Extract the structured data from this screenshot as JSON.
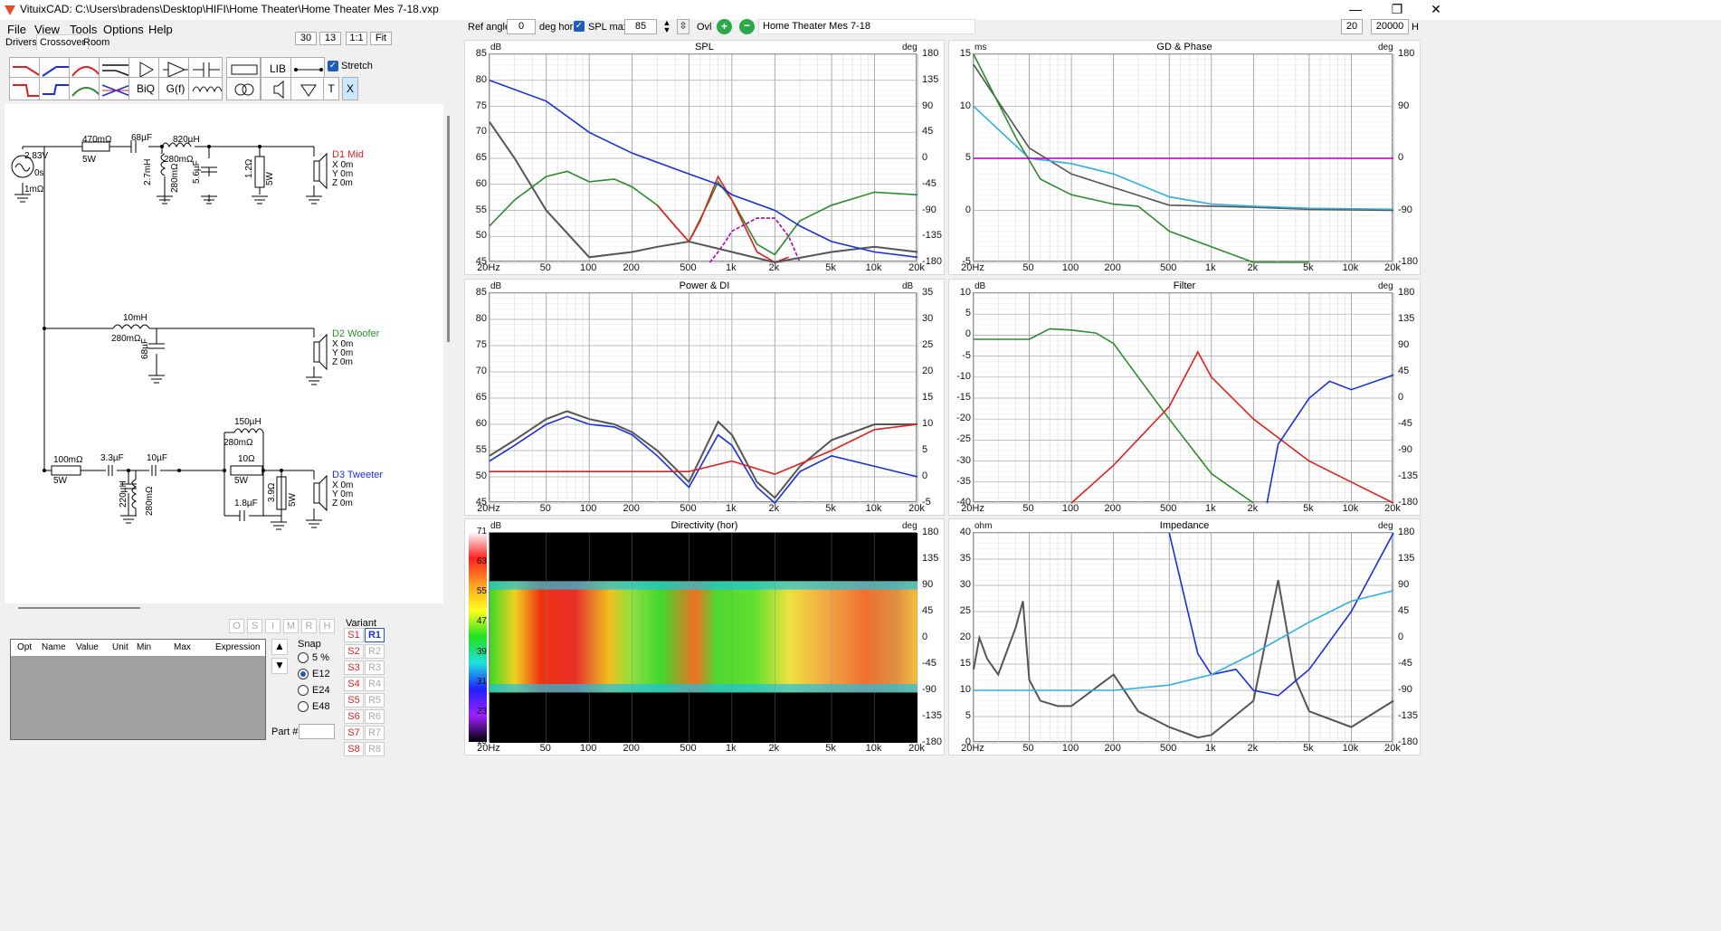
{
  "window": {
    "title": "VituixCAD: C:\\Users\\bradens\\Desktop\\HIFI\\Home Theater\\Home Theater Mes 7-18.vxp",
    "min": "—",
    "max": "❐",
    "close": "✕"
  },
  "menu": [
    "File",
    "View",
    "Tools",
    "Options",
    "Help"
  ],
  "tabs": [
    "Drivers",
    "Crossover",
    "Room"
  ],
  "zoom": {
    "v1": "30",
    "v2": "13",
    "v3": "1:1",
    "v4": "Fit"
  },
  "tools": {
    "row1": [
      "LIB"
    ],
    "row2": [
      "BiQ",
      "G(f)",
      "T",
      "X"
    ],
    "stretch": "Stretch"
  },
  "top": {
    "ref_angle_label": "Ref angle",
    "ref_angle": "0",
    "deg_hor": "deg hor",
    "spl_max_label": "SPL max",
    "spl_max": "85",
    "ovl": "Ovl",
    "project": "Home Theater Mes 7-18",
    "f_low": "20",
    "f_high": "20000",
    "hz": "H"
  },
  "schematic": {
    "source": {
      "v": "2.83V",
      "s": "0s",
      "r": "1mΩ"
    },
    "mid": {
      "r1": "470mΩ",
      "r1w": "5W",
      "c1": "68µF",
      "l1": "820µH",
      "l1r": "280mΩ",
      "l2": "2.7mH",
      "l2r": "280mΩ",
      "c2": "5.6µF",
      "r2": "1.2Ω",
      "r2w": "5W",
      "driver": "D1 Mid",
      "x": "X 0m",
      "y": "Y 0m",
      "z": "Z 0m"
    },
    "woofer": {
      "l1": "10mH",
      "l1r": "280mΩ",
      "c1": "68µF",
      "driver": "D2 Woofer",
      "x": "X 0m",
      "y": "Y 0m",
      "z": "Z 0m"
    },
    "tweeter": {
      "r1": "100mΩ",
      "r1w": "5W",
      "c1": "3.3µF",
      "c2": "10µF",
      "l1": "220µH",
      "l1r": "280mΩ",
      "l2": "150µH",
      "l2r": "280mΩ",
      "r2": "10Ω",
      "r2w": "5W",
      "c3": "1.8µF",
      "r3": "3.9Ω",
      "r3w": "5W",
      "driver": "D3 Tweeter",
      "x": "X 0m",
      "y": "Y 0m",
      "z": "Z 0m"
    }
  },
  "optim": {
    "flags": [
      "O",
      "S",
      "I",
      "M",
      "R",
      "H"
    ],
    "cols": [
      "Opt",
      "Name",
      "Value",
      "Unit",
      "Min",
      "Max",
      "Expression"
    ],
    "snap_label": "Snap",
    "snap": [
      "5 %",
      "E12",
      "E24",
      "E48"
    ],
    "variant_label": "Variant",
    "s": [
      "S1",
      "S2",
      "S3",
      "S4",
      "S5",
      "S6",
      "S7",
      "S8"
    ],
    "r": [
      "R1",
      "R2",
      "R3",
      "R4",
      "R5",
      "R6",
      "R7",
      "R8"
    ],
    "part": "Part #"
  },
  "colors": {
    "red": "#e02020",
    "blue": "#1a2ee0",
    "green": "#2e8b2e",
    "grey": "#555555",
    "purple": "#b000b0",
    "cyan": "#30b0e0"
  },
  "chart_data": [
    {
      "type": "line",
      "title": "SPL",
      "ylabel": "dB",
      "ylabel_right": "deg",
      "ylim": [
        45,
        85
      ],
      "ylim_right": [
        -180,
        180
      ],
      "xlim": [
        20,
        20000
      ],
      "xscale": "log",
      "x_ticks": [
        "20Hz",
        "50",
        "100",
        "200",
        "500",
        "1k",
        "2k",
        "5k",
        "10k",
        "20k"
      ],
      "y_ticks": [
        "85",
        "80",
        "75",
        "70",
        "65",
        "60",
        "55",
        "50",
        "45"
      ],
      "r_ticks": [
        "180",
        "135",
        "90",
        "45",
        "0",
        "-45",
        "-90",
        "-135",
        "-180"
      ],
      "series": [
        {
          "color": "green",
          "x": [
            20,
            30,
            50,
            70,
            100,
            150,
            200,
            300,
            400,
            500,
            700,
            800,
            1000,
            1500,
            2000,
            3000,
            5000,
            10000,
            20000
          ],
          "y": [
            52,
            57,
            61.5,
            62.5,
            60.5,
            61,
            59.5,
            56,
            52,
            49,
            57,
            60.5,
            57,
            48.5,
            46.5,
            53,
            56,
            58.5,
            58
          ]
        },
        {
          "color": "red",
          "x": [
            300,
            400,
            500,
            600,
            800,
            1000,
            1500,
            2000,
            2500
          ],
          "y": [
            56,
            52,
            49,
            53,
            61.5,
            57,
            47,
            45,
            46
          ]
        },
        {
          "color": "purple",
          "x": [
            700,
            800,
            900,
            1000,
            1500,
            2000,
            2500,
            3000
          ],
          "y": [
            45,
            47,
            49,
            51,
            53.5,
            53.5,
            50,
            45
          ]
        },
        {
          "color": "grey",
          "x": [
            20,
            30,
            50,
            100,
            200,
            300,
            500,
            1000,
            2000,
            5000,
            10000,
            20000
          ],
          "y": [
            72,
            65,
            55,
            46,
            47,
            48,
            49,
            47,
            45,
            47,
            48,
            47
          ]
        },
        {
          "color": "blue",
          "x": [
            20,
            50,
            100,
            200,
            500,
            800,
            1000,
            2000,
            3000,
            5000,
            10000,
            20000
          ],
          "y": [
            80,
            76,
            70,
            66,
            62,
            60,
            58,
            55,
            52,
            49,
            47,
            46
          ]
        }
      ]
    },
    {
      "type": "line",
      "title": "GD & Phase",
      "ylabel": "ms",
      "ylabel_right": "deg",
      "ylim": [
        -5,
        15
      ],
      "xlim": [
        20,
        20000
      ],
      "xscale": "log",
      "x_ticks": [
        "20Hz",
        "50",
        "100",
        "200",
        "500",
        "1k",
        "2k",
        "5k",
        "10k",
        "20k"
      ],
      "y_ticks": [
        "15",
        "10",
        "5",
        "0",
        "-5"
      ],
      "r_ticks": [
        "180",
        "90",
        "0",
        "-90",
        "-180"
      ],
      "series": [
        {
          "color": "grey",
          "x": [
            20,
            50,
            100,
            200,
            500,
            1000,
            2000,
            5000,
            20000
          ],
          "y": [
            14,
            6,
            3.5,
            2.2,
            0.5,
            0.4,
            0.3,
            0.1,
            0
          ]
        },
        {
          "color": "cyan",
          "x": [
            20,
            50,
            100,
            200,
            500,
            1000,
            2000,
            5000,
            20000
          ],
          "y": [
            10,
            5,
            4.5,
            3.5,
            1.3,
            0.6,
            0.4,
            0.2,
            0.1
          ]
        },
        {
          "color": "green",
          "x": [
            20,
            40,
            60,
            100,
            200,
            300,
            500,
            1000,
            2000,
            5000
          ],
          "y": [
            15,
            7,
            3,
            1.5,
            0.6,
            0.4,
            -2,
            -3.5,
            -5,
            -5
          ]
        },
        {
          "color": "purple",
          "x": [
            20,
            5000,
            20000
          ],
          "y": [
            5,
            5,
            5
          ]
        }
      ]
    },
    {
      "type": "line",
      "title": "Power & DI",
      "ylabel": "dB",
      "ylabel_right": "dB",
      "ylim": [
        45,
        85
      ],
      "ylim_right": [
        -5,
        35
      ],
      "xlim": [
        20,
        20000
      ],
      "xscale": "log",
      "x_ticks": [
        "20Hz",
        "50",
        "100",
        "200",
        "500",
        "1k",
        "2k",
        "5k",
        "10k",
        "20k"
      ],
      "y_ticks": [
        "85",
        "80",
        "75",
        "70",
        "65",
        "60",
        "55",
        "50",
        "45"
      ],
      "r_ticks": [
        "35",
        "30",
        "25",
        "20",
        "15",
        "10",
        "5",
        "0",
        "-5"
      ],
      "series": [
        {
          "color": "grey",
          "x": [
            20,
            30,
            50,
            70,
            100,
            150,
            200,
            300,
            500,
            800,
            1000,
            1500,
            2000,
            3000,
            5000,
            10000,
            20000
          ],
          "y": [
            54,
            57,
            61,
            62.5,
            61,
            60,
            58.5,
            55,
            49,
            60.5,
            58,
            49,
            46,
            52,
            57,
            60,
            60
          ]
        },
        {
          "color": "blue",
          "x": [
            20,
            30,
            50,
            70,
            100,
            150,
            200,
            300,
            500,
            800,
            1000,
            1500,
            2000,
            3000,
            5000,
            10000,
            20000
          ],
          "y": [
            53,
            56,
            60,
            61.5,
            60,
            59.5,
            58,
            54,
            48,
            58,
            56,
            48,
            45,
            51,
            54,
            52,
            50
          ]
        },
        {
          "color": "red",
          "x": [
            20,
            200,
            500,
            1000,
            2000,
            5000,
            10000,
            20000
          ],
          "y": [
            51,
            51,
            51,
            53,
            50.5,
            55,
            59,
            60
          ]
        }
      ]
    },
    {
      "type": "line",
      "title": "Filter",
      "ylabel": "dB",
      "ylabel_right": "deg",
      "ylim": [
        -40,
        10
      ],
      "xlim": [
        20,
        20000
      ],
      "xscale": "log",
      "x_ticks": [
        "20Hz",
        "50",
        "100",
        "200",
        "500",
        "1k",
        "2k",
        "5k",
        "10k",
        "20k"
      ],
      "y_ticks": [
        "10",
        "5",
        "0",
        "-5",
        "-10",
        "-15",
        "-20",
        "-25",
        "-30",
        "-35",
        "-40"
      ],
      "r_ticks": [
        "180",
        "135",
        "90",
        "45",
        "0",
        "-45",
        "-90",
        "-135",
        "-180"
      ],
      "series": [
        {
          "color": "green",
          "x": [
            20,
            50,
            70,
            100,
            150,
            200,
            300,
            500,
            1000,
            2000
          ],
          "y": [
            -1,
            -1,
            1.5,
            1.2,
            0.5,
            -2,
            -10,
            -20,
            -33,
            -40
          ]
        },
        {
          "color": "red",
          "x": [
            100,
            200,
            500,
            800,
            1000,
            2000,
            5000,
            10000,
            20000
          ],
          "y": [
            -40,
            -31,
            -17,
            -4,
            -10,
            -20,
            -30,
            -35,
            -40
          ]
        },
        {
          "color": "blue",
          "x": [
            2500,
            3000,
            5000,
            7000,
            10000,
            20000
          ],
          "y": [
            -40,
            -26,
            -15,
            -11,
            -13,
            -9.5
          ]
        }
      ]
    },
    {
      "type": "heatmap",
      "title": "Directivity (hor)",
      "ylabel": "dB",
      "ylabel_right": "deg",
      "scale": [
        "71",
        "63",
        "55",
        "47",
        "39",
        "31",
        "23",
        "15"
      ],
      "r_ticks": [
        "180",
        "135",
        "90",
        "45",
        "0",
        "-45",
        "-90",
        "-135",
        "-180"
      ],
      "x_ticks": [
        "20Hz",
        "50",
        "100",
        "200",
        "500",
        "1k",
        "2k",
        "5k",
        "10k",
        "20k"
      ]
    },
    {
      "type": "line",
      "title": "Impedance",
      "ylabel": "ohm",
      "ylabel_right": "deg",
      "ylim": [
        0,
        40
      ],
      "xlim": [
        20,
        20000
      ],
      "xscale": "log",
      "x_ticks": [
        "20Hz",
        "50",
        "100",
        "200",
        "500",
        "1k",
        "2k",
        "5k",
        "10k",
        "20k"
      ],
      "y_ticks": [
        "40",
        "35",
        "30",
        "25",
        "20",
        "15",
        "10",
        "5",
        "0"
      ],
      "r_ticks": [
        "180",
        "135",
        "90",
        "45",
        "0",
        "-45",
        "-90",
        "-135",
        "-180"
      ],
      "series": [
        {
          "color": "grey",
          "x": [
            20,
            22,
            25,
            30,
            40,
            45,
            50,
            60,
            80,
            100,
            200,
            300,
            500,
            800,
            1000,
            2000,
            3000,
            4000,
            5000,
            10000,
            20000
          ],
          "y": [
            14,
            20,
            16,
            13,
            22,
            27,
            12,
            8,
            7,
            7,
            13,
            6,
            3,
            1,
            1.5,
            8,
            31,
            12,
            6,
            3,
            8
          ]
        },
        {
          "color": "blue",
          "x": [
            500,
            800,
            1000,
            1500,
            2000,
            3000,
            5000,
            10000,
            20000
          ],
          "y": [
            40,
            17,
            13,
            14,
            10,
            9,
            14,
            25,
            40
          ]
        },
        {
          "color": "cyan",
          "x": [
            20,
            200,
            500,
            1000,
            2000,
            5000,
            10000,
            20000
          ],
          "y": [
            10,
            10,
            11,
            13,
            17,
            23,
            27,
            29
          ]
        }
      ]
    }
  ]
}
